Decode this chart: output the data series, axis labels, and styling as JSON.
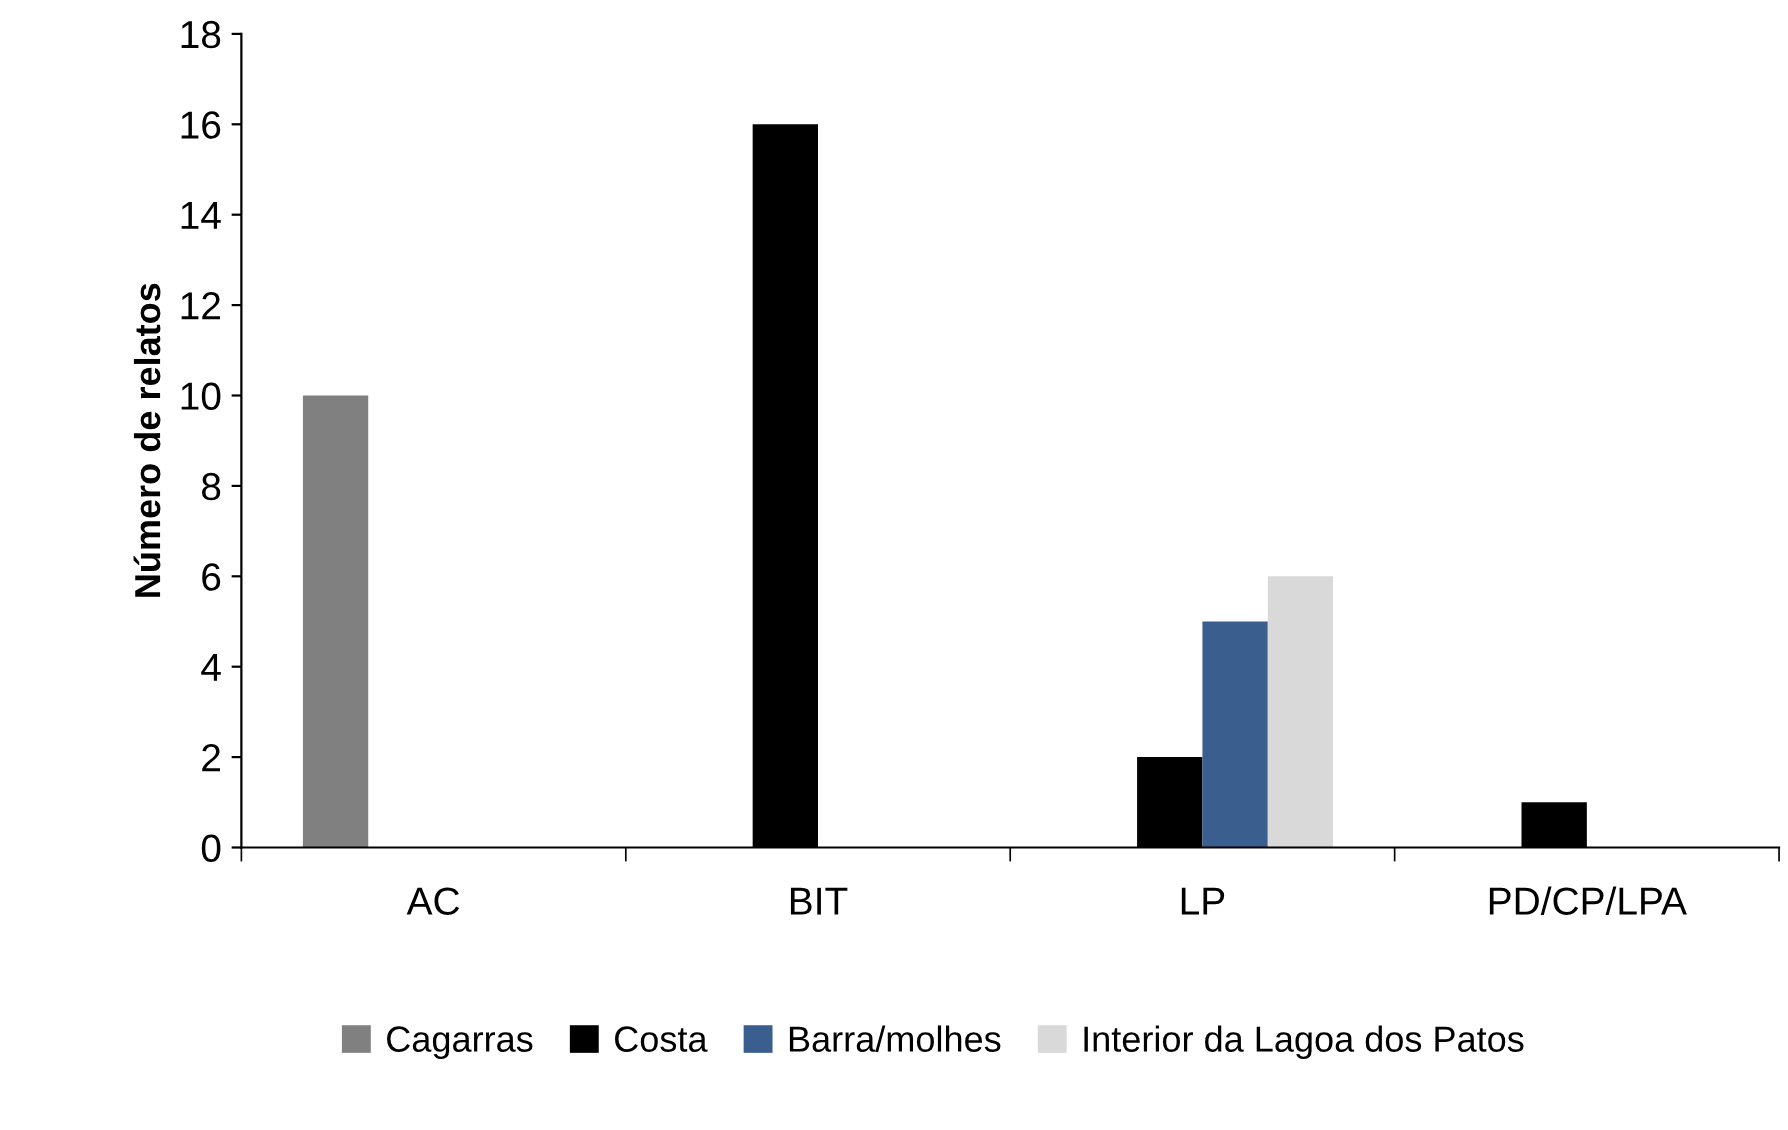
{
  "chart_data": {
    "type": "bar",
    "ylabel": "Número de relatos",
    "categories": [
      "AC",
      "BIT",
      "LP",
      "PD/CP/LPA"
    ],
    "series": [
      {
        "name": "Cagarras",
        "color": "#808080",
        "values": [
          10,
          0,
          0,
          0
        ]
      },
      {
        "name": "Costa",
        "color": "#000000",
        "values": [
          0,
          16,
          2,
          1
        ]
      },
      {
        "name": "Barra/molhes",
        "color": "#3a5f8f",
        "values": [
          0,
          0,
          5,
          0
        ]
      },
      {
        "name": "Interior da Lagoa dos Patos",
        "color": "#d9d9d9",
        "values": [
          0,
          0,
          6,
          0
        ]
      }
    ],
    "ylim": [
      0,
      18
    ],
    "yticks": [
      0,
      2,
      4,
      6,
      8,
      10,
      12,
      14,
      16,
      18
    ],
    "grid": false,
    "legend": "bottom"
  }
}
